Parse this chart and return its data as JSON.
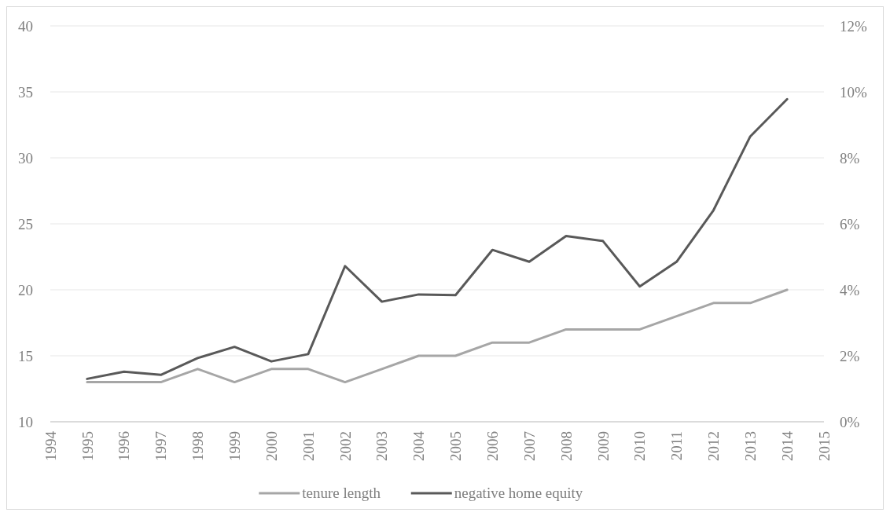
{
  "chart_data": {
    "type": "line",
    "x": [
      1995,
      1996,
      1997,
      1998,
      1999,
      2000,
      2001,
      2002,
      2003,
      2004,
      2005,
      2006,
      2007,
      2008,
      2009,
      2010,
      2011,
      2012,
      2013,
      2014
    ],
    "xlim": [
      1994,
      2015
    ],
    "xticks": [
      1994,
      1995,
      1996,
      1997,
      1998,
      1999,
      2000,
      2001,
      2002,
      2003,
      2004,
      2005,
      2006,
      2007,
      2008,
      2009,
      2010,
      2011,
      2012,
      2013,
      2014,
      2015
    ],
    "ylim": [
      10,
      40
    ],
    "yticks": [
      10,
      15,
      20,
      25,
      30,
      35,
      40
    ],
    "y2lim": [
      0,
      12
    ],
    "y2ticks": [
      {
        "value": 0,
        "label": "0%"
      },
      {
        "value": 2,
        "label": "2%"
      },
      {
        "value": 4,
        "label": "4%"
      },
      {
        "value": 6,
        "label": "6%"
      },
      {
        "value": 8,
        "label": "8%"
      },
      {
        "value": 10,
        "label": "10%"
      },
      {
        "value": 12,
        "label": "12%"
      }
    ],
    "grid": "y",
    "legend": "bottom",
    "marker": "none",
    "line_style": "solid",
    "series": [
      {
        "name": "tenure length",
        "color": "#a6a6a6",
        "values": [
          13,
          13,
          13,
          14,
          13,
          14,
          14,
          13,
          14,
          15,
          15,
          16,
          16,
          17,
          17,
          17,
          18,
          19,
          19,
          20
        ]
      },
      {
        "name": "negative home equity",
        "color": "#595959",
        "axis": "y2",
        "values": [
          1.3,
          1.52,
          1.42,
          1.93,
          2.27,
          1.83,
          2.05,
          4.72,
          3.64,
          3.86,
          3.84,
          5.21,
          4.85,
          5.63,
          5.48,
          4.1,
          4.85,
          6.41,
          8.65,
          9.78
        ]
      }
    ]
  }
}
